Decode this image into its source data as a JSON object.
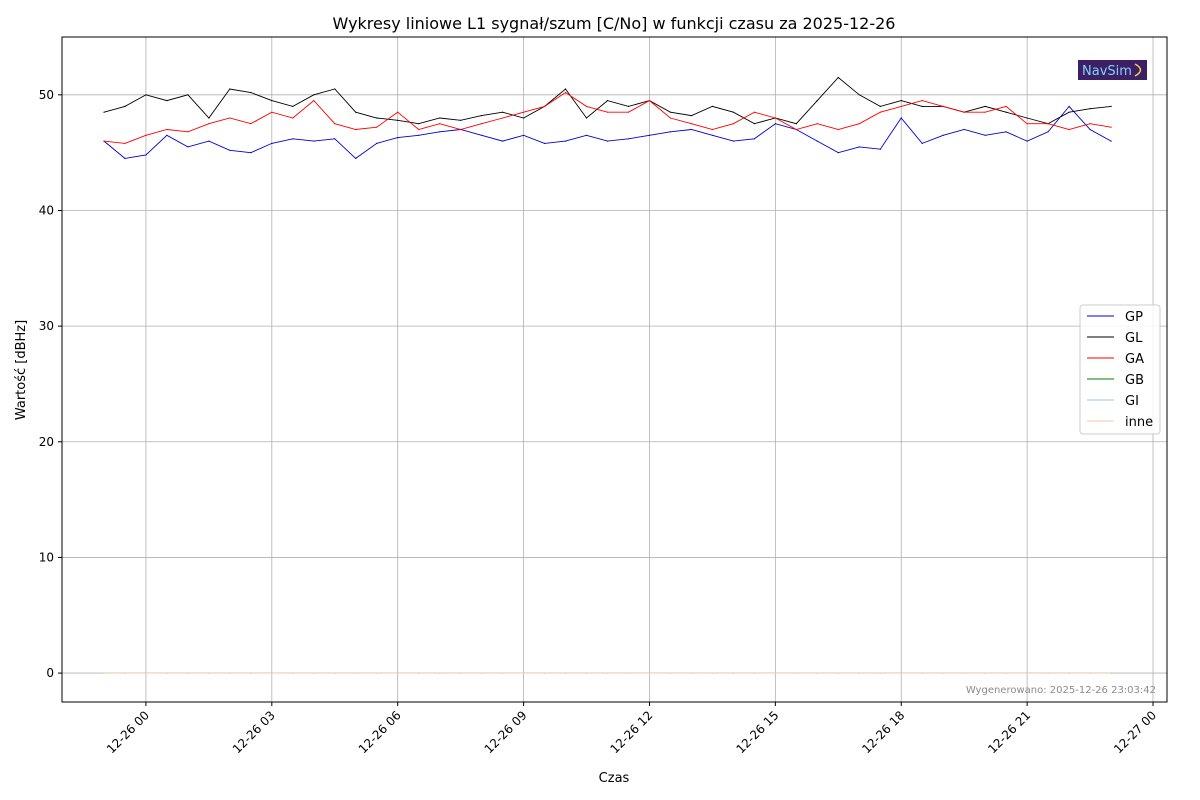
{
  "chart_data": {
    "type": "line",
    "title": "Wykresy liniowe L1 sygnał/szum [C/No] w funkcji czasu za 2025-12-26",
    "xlabel": "Czas",
    "ylabel": "Wartość [dBHz]",
    "xlim": [
      "2025-12-25 22:00",
      "2025-12-27 00:20"
    ],
    "ylim": [
      -2.5,
      55
    ],
    "grid": true,
    "legend_position": "center-right",
    "x_ticks": [
      "12-26 00",
      "12-26 03",
      "12-26 06",
      "12-26 09",
      "12-26 12",
      "12-26 15",
      "12-26 18",
      "12-26 21",
      "12-27 00"
    ],
    "y_ticks": [
      "0",
      "10",
      "20",
      "30",
      "40",
      "50"
    ],
    "x": [
      "2025-12-25 23:00",
      "2025-12-25 23:30",
      "2025-12-26 00:00",
      "2025-12-26 00:30",
      "2025-12-26 01:00",
      "2025-12-26 01:30",
      "2025-12-26 02:00",
      "2025-12-26 02:30",
      "2025-12-26 03:00",
      "2025-12-26 03:30",
      "2025-12-26 04:00",
      "2025-12-26 04:30",
      "2025-12-26 05:00",
      "2025-12-26 05:30",
      "2025-12-26 06:00",
      "2025-12-26 06:30",
      "2025-12-26 07:00",
      "2025-12-26 07:30",
      "2025-12-26 08:00",
      "2025-12-26 08:30",
      "2025-12-26 09:00",
      "2025-12-26 09:30",
      "2025-12-26 10:00",
      "2025-12-26 10:30",
      "2025-12-26 11:00",
      "2025-12-26 11:30",
      "2025-12-26 12:00",
      "2025-12-26 12:30",
      "2025-12-26 13:00",
      "2025-12-26 13:30",
      "2025-12-26 14:00",
      "2025-12-26 14:30",
      "2025-12-26 15:00",
      "2025-12-26 15:30",
      "2025-12-26 16:00",
      "2025-12-26 16:30",
      "2025-12-26 17:00",
      "2025-12-26 17:30",
      "2025-12-26 18:00",
      "2025-12-26 18:30",
      "2025-12-26 19:00",
      "2025-12-26 19:30",
      "2025-12-26 20:00",
      "2025-12-26 20:30",
      "2025-12-26 21:00",
      "2025-12-26 21:30",
      "2025-12-26 22:00",
      "2025-12-26 22:30",
      "2025-12-26 23:00"
    ],
    "series": [
      {
        "name": "GP",
        "color": "#0000cc",
        "values": [
          46.0,
          44.5,
          44.8,
          46.5,
          45.5,
          46.0,
          45.2,
          45.0,
          45.8,
          46.2,
          46.0,
          46.2,
          44.5,
          45.8,
          46.3,
          46.5,
          46.8,
          47.0,
          46.5,
          46.0,
          46.5,
          45.8,
          46.0,
          46.5,
          46.0,
          46.2,
          46.5,
          46.8,
          47.0,
          46.5,
          46.0,
          46.2,
          47.5,
          47.0,
          46.0,
          45.0,
          45.5,
          45.3,
          48.0,
          45.8,
          46.5,
          47.0,
          46.5,
          46.8,
          46.0,
          46.8,
          49.0,
          47.0,
          46.0
        ]
      },
      {
        "name": "GL",
        "color": "#000000",
        "values": [
          48.5,
          49.0,
          50.0,
          49.5,
          50.0,
          48.0,
          50.5,
          50.2,
          49.5,
          49.0,
          50.0,
          50.5,
          48.5,
          48.0,
          47.8,
          47.5,
          48.0,
          47.8,
          48.2,
          48.5,
          48.0,
          49.0,
          50.5,
          48.0,
          49.5,
          49.0,
          49.5,
          48.5,
          48.2,
          49.0,
          48.5,
          47.5,
          48.0,
          47.5,
          49.5,
          51.5,
          50.0,
          49.0,
          49.5,
          49.0,
          49.0,
          48.5,
          49.0,
          48.5,
          48.0,
          47.5,
          48.5,
          48.8,
          49.0
        ]
      },
      {
        "name": "GA",
        "color": "#ff0000",
        "values": [
          46.0,
          45.8,
          46.5,
          47.0,
          46.8,
          47.5,
          48.0,
          47.5,
          48.5,
          48.0,
          49.5,
          47.5,
          47.0,
          47.2,
          48.5,
          47.0,
          47.5,
          47.0,
          47.5,
          48.0,
          48.5,
          49.0,
          50.2,
          49.0,
          48.5,
          48.5,
          49.5,
          48.0,
          47.5,
          47.0,
          47.5,
          48.5,
          48.0,
          47.0,
          47.5,
          47.0,
          47.5,
          48.5,
          49.0,
          49.5,
          49.0,
          48.5,
          48.5,
          49.0,
          47.5,
          47.5,
          47.0,
          47.5,
          47.2
        ]
      },
      {
        "name": "GB",
        "color": "#008000",
        "values": [
          0,
          0,
          0,
          0,
          0,
          0,
          0,
          0,
          0,
          0,
          0,
          0,
          0,
          0,
          0,
          0,
          0,
          0,
          0,
          0,
          0,
          0,
          0,
          0,
          0,
          0,
          0,
          0,
          0,
          0,
          0,
          0,
          0,
          0,
          0,
          0,
          0,
          0,
          0,
          0,
          0,
          0,
          0,
          0,
          0,
          0,
          0,
          0,
          0
        ]
      },
      {
        "name": "GI",
        "color": "#9ec4ea",
        "values": [
          0,
          0,
          0,
          0,
          0,
          0,
          0,
          0,
          0,
          0,
          0,
          0,
          0,
          0,
          0,
          0,
          0,
          0,
          0,
          0,
          0,
          0,
          0,
          0,
          0,
          0,
          0,
          0,
          0,
          0,
          0,
          0,
          0,
          0,
          0,
          0,
          0,
          0,
          0,
          0,
          0,
          0,
          0,
          0,
          0,
          0,
          0,
          0,
          0
        ]
      },
      {
        "name": "inne",
        "color": "#f5c9a0",
        "values": [
          0,
          0,
          0,
          0,
          0,
          0,
          0,
          0,
          0,
          0,
          0,
          0,
          0,
          0,
          0,
          0,
          0,
          0,
          0,
          0,
          0,
          0,
          0,
          0,
          0,
          0,
          0,
          0,
          0,
          0,
          0,
          0,
          0,
          0,
          0,
          0,
          0,
          0,
          0,
          0,
          0,
          0,
          0,
          0,
          0,
          0,
          0,
          0,
          0
        ]
      }
    ],
    "annotation": "Wygenerowano: 2025-12-26 23:03:42",
    "logo_text": "NavSim"
  }
}
